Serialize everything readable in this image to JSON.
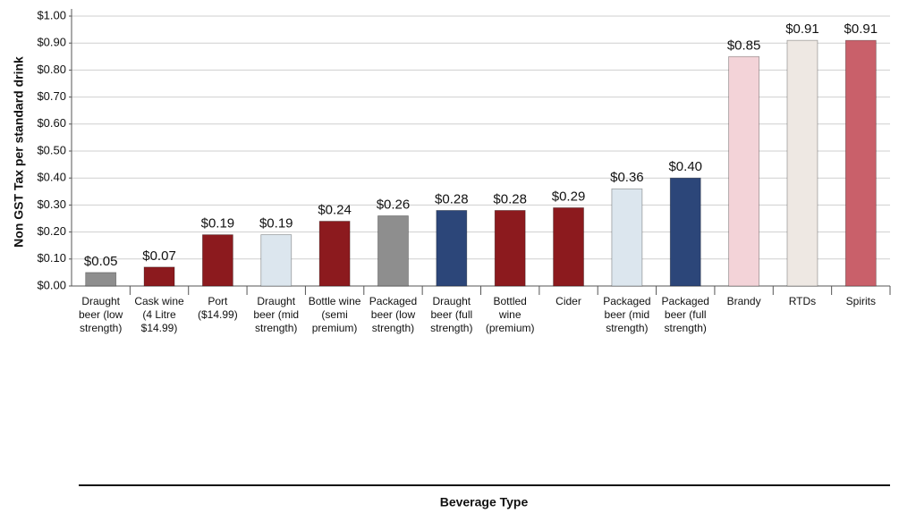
{
  "chart_data": {
    "type": "bar",
    "y_label": "Non GST Tax per standard drink",
    "x_label": "Beverage Type",
    "categories": [
      "Draught beer (low strength)",
      "Cask wine (4 Litre $14.99)",
      "Port ($14.99)",
      "Draught beer (mid strength)",
      "Bottle wine (semi premium)",
      "Packaged beer (low strength)",
      "Draught beer (full strength)",
      "Bottled wine (premium)",
      "Cider",
      "Packaged beer (mid strength)",
      "Packaged beer (full strength)",
      "Brandy",
      "RTDs",
      "Spirits"
    ],
    "values": [
      0.05,
      0.07,
      0.19,
      0.19,
      0.24,
      0.26,
      0.28,
      0.28,
      0.29,
      0.36,
      0.4,
      0.85,
      0.91,
      0.91
    ],
    "value_labels": [
      "$0.05",
      "$0.07",
      "$0.19",
      "$0.19",
      "$0.24",
      "$0.26",
      "$0.28",
      "$0.28",
      "$0.29",
      "$0.36",
      "$0.40",
      "$0.85",
      "$0.91",
      "$0.91"
    ],
    "colors": [
      "#8e8e8e",
      "#8c1a1e",
      "#8c1a1e",
      "#dce6ee",
      "#8c1a1e",
      "#8e8e8e",
      "#2c4679",
      "#8c1a1e",
      "#8c1a1e",
      "#dce6ee",
      "#2c4679",
      "#f3d3d8",
      "#eee8e3",
      "#c9606a"
    ],
    "ylim": [
      0,
      1
    ],
    "yticks": [
      {
        "value": 0,
        "label": "$0.00"
      },
      {
        "value": 0.1,
        "label": "$0.10"
      },
      {
        "value": 0.2,
        "label": "$0.20"
      },
      {
        "value": 0.3,
        "label": "$0.30"
      },
      {
        "value": 0.4,
        "label": "$0.40"
      },
      {
        "value": 0.5,
        "label": "$0.50"
      },
      {
        "value": 0.6,
        "label": "$0.60"
      },
      {
        "value": 0.7,
        "label": "$0.70"
      },
      {
        "value": 0.8,
        "label": "$0.80"
      },
      {
        "value": 0.9,
        "label": "$0.90"
      },
      {
        "value": 1,
        "label": "$1.00"
      }
    ],
    "grid": true
  }
}
